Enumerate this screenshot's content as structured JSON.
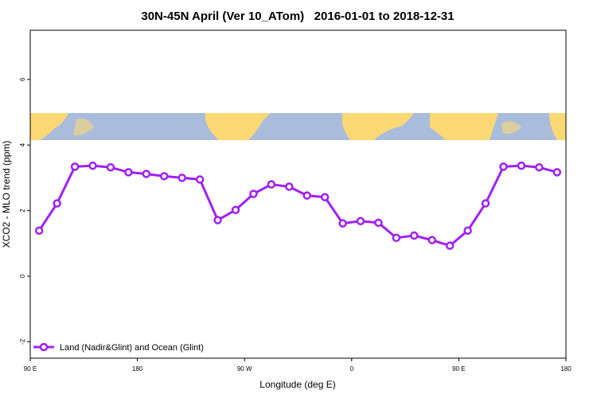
{
  "chart_data": {
    "type": "line",
    "title": "30N-45N April (Ver 10_ATom)   2016-01-01 to 2018-12-31",
    "x_label": "Longitude (deg E)",
    "y_label": "XCO2 - MLO trend (ppm)",
    "xlim": [
      90,
      540
    ],
    "xticks": [
      {
        "value": 90,
        "label": "90 E"
      },
      {
        "value": 180,
        "label": "180"
      },
      {
        "value": 270,
        "label": "90 W"
      },
      {
        "value": 360,
        "label": "0"
      },
      {
        "value": 450,
        "label": "90 E"
      },
      {
        "value": 540,
        "label": "180"
      }
    ],
    "ylim": [
      -2.5,
      7.5
    ],
    "yticks": [
      -2,
      0,
      2,
      4,
      6
    ],
    "x": [
      97.5,
      112.5,
      127.5,
      142.5,
      157.5,
      172.5,
      187.5,
      202.5,
      217.5,
      232.5,
      247.5,
      262.5,
      277.5,
      292.5,
      307.5,
      322.5,
      337.5,
      352.5,
      367.5,
      382.5,
      397.5,
      412.5,
      427.5,
      442.5,
      457.5,
      472.5,
      487.5,
      502.5,
      517.5,
      532.5
    ],
    "series": [
      {
        "name": "Land (Nadir&Glint) and Ocean (Glint)",
        "color": "#a020f0",
        "values": [
          1.39,
          2.22,
          3.34,
          3.37,
          3.32,
          3.17,
          3.12,
          3.05,
          3.0,
          2.95,
          1.71,
          2.02,
          2.51,
          2.8,
          2.73,
          2.46,
          2.41,
          1.61,
          1.68,
          1.63,
          1.17,
          1.24,
          1.1,
          0.93,
          1.39,
          2.22,
          3.34,
          3.37,
          3.32,
          3.17
        ]
      }
    ],
    "legend": "bottom-left"
  }
}
